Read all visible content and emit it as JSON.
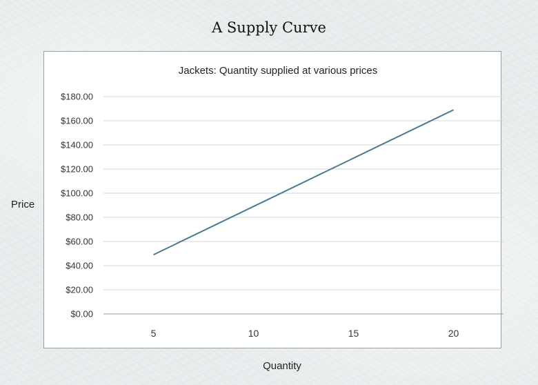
{
  "page": {
    "title": "A Supply Curve"
  },
  "chart_data": {
    "type": "line",
    "title": "Jackets: Quantity supplied at various prices",
    "xlabel": "Quantity",
    "ylabel": "Price",
    "x_ticks": [
      "5",
      "10",
      "15",
      "20"
    ],
    "y_ticks": [
      "$0.00",
      "$20.00",
      "$40.00",
      "$60.00",
      "$80.00",
      "$100.00",
      "$120.00",
      "$140.00",
      "$160.00",
      "$180.00"
    ],
    "ylim": [
      0,
      180
    ],
    "xlim": [
      2.5,
      22.5
    ],
    "grid": true,
    "series": [
      {
        "x": [
          5,
          20
        ],
        "y": [
          49,
          169
        ],
        "color": "#4a7a91"
      }
    ]
  }
}
